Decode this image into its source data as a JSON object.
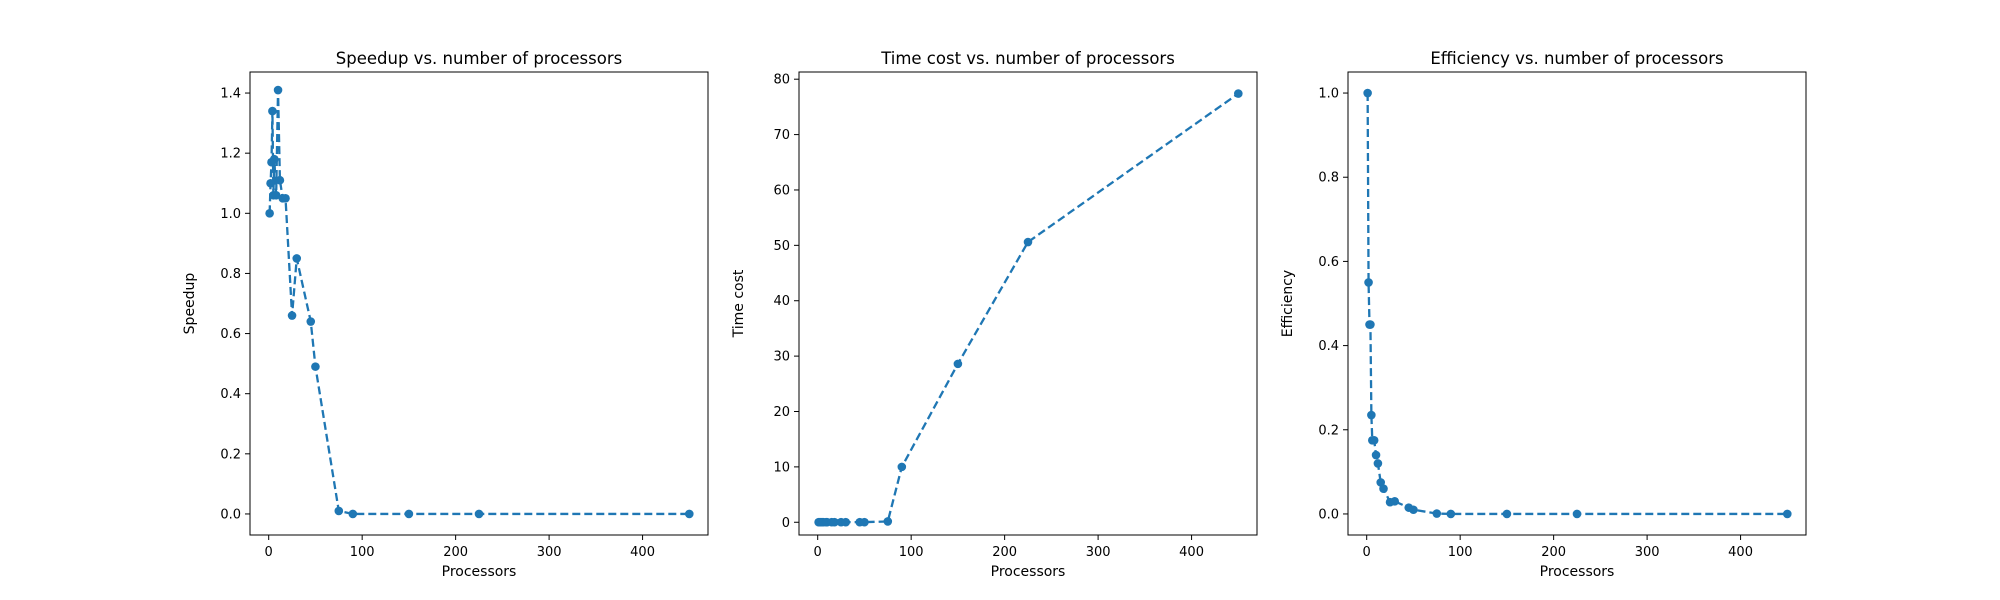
{
  "chart_data": [
    {
      "type": "line",
      "title": "Speedup vs. number of processors",
      "xlabel": "Processors",
      "ylabel": "Speedup",
      "xlim": [
        -20,
        470
      ],
      "ylim": [
        -0.07,
        1.47
      ],
      "xticks": [
        0,
        100,
        200,
        300,
        400
      ],
      "yticks": [
        0.0,
        0.2,
        0.4,
        0.6,
        0.8,
        1.0,
        1.2,
        1.4
      ],
      "ytick_format": "1dp",
      "grid": false,
      "line_style": "dashed",
      "marker": "circle",
      "series": [
        {
          "x": [
            1,
            2,
            3,
            4,
            5,
            6,
            8,
            10,
            12,
            15,
            18,
            25,
            30,
            45,
            50,
            75,
            90,
            150,
            225,
            450
          ],
          "y": [
            1.0,
            1.1,
            1.17,
            1.34,
            1.06,
            1.18,
            1.06,
            1.41,
            1.11,
            1.05,
            1.05,
            0.66,
            0.85,
            0.64,
            0.49,
            0.01,
            0.0,
            0.0,
            0.0,
            0.0
          ]
        }
      ]
    },
    {
      "type": "line",
      "title": "Time cost vs. number of processors",
      "xlabel": "Processors",
      "ylabel": "Time cost",
      "xlim": [
        -20,
        470
      ],
      "ylim": [
        -2.3,
        81.3
      ],
      "xticks": [
        0,
        100,
        200,
        300,
        400
      ],
      "yticks": [
        0,
        10,
        20,
        30,
        40,
        50,
        60,
        70,
        80
      ],
      "ytick_format": "int",
      "grid": false,
      "line_style": "dashed",
      "marker": "circle",
      "series": [
        {
          "x": [
            1,
            2,
            3,
            4,
            5,
            6,
            9,
            10,
            15,
            18,
            25,
            30,
            45,
            50,
            75,
            90,
            150,
            225,
            450
          ],
          "y": [
            0.02,
            0.02,
            0.02,
            0.02,
            0.02,
            0.02,
            0.02,
            0.02,
            0.02,
            0.02,
            0.02,
            0.02,
            0.02,
            0.02,
            0.15,
            10.0,
            28.6,
            50.6,
            77.4
          ]
        }
      ]
    },
    {
      "type": "line",
      "title": "Efficiency vs. number of processors",
      "xlabel": "Processors",
      "ylabel": "Efficiency",
      "xlim": [
        -20,
        470
      ],
      "ylim": [
        -0.05,
        1.05
      ],
      "xticks": [
        0,
        100,
        200,
        300,
        400
      ],
      "yticks": [
        0.0,
        0.2,
        0.4,
        0.6,
        0.8,
        1.0
      ],
      "ytick_format": "1dp",
      "grid": false,
      "line_style": "dashed",
      "marker": "circle",
      "series": [
        {
          "x": [
            1,
            2,
            3,
            4,
            5,
            6,
            8,
            10,
            12,
            15,
            18,
            25,
            30,
            45,
            50,
            75,
            90,
            150,
            225,
            450
          ],
          "y": [
            1.0,
            0.55,
            0.45,
            0.45,
            0.235,
            0.175,
            0.175,
            0.14,
            0.12,
            0.075,
            0.06,
            0.028,
            0.03,
            0.015,
            0.01,
            0.001,
            0.0,
            0.0,
            0.0,
            0.0
          ]
        }
      ]
    }
  ],
  "colors": {
    "series": "#1f77b4",
    "axes": "#000000",
    "background": "#ffffff"
  }
}
